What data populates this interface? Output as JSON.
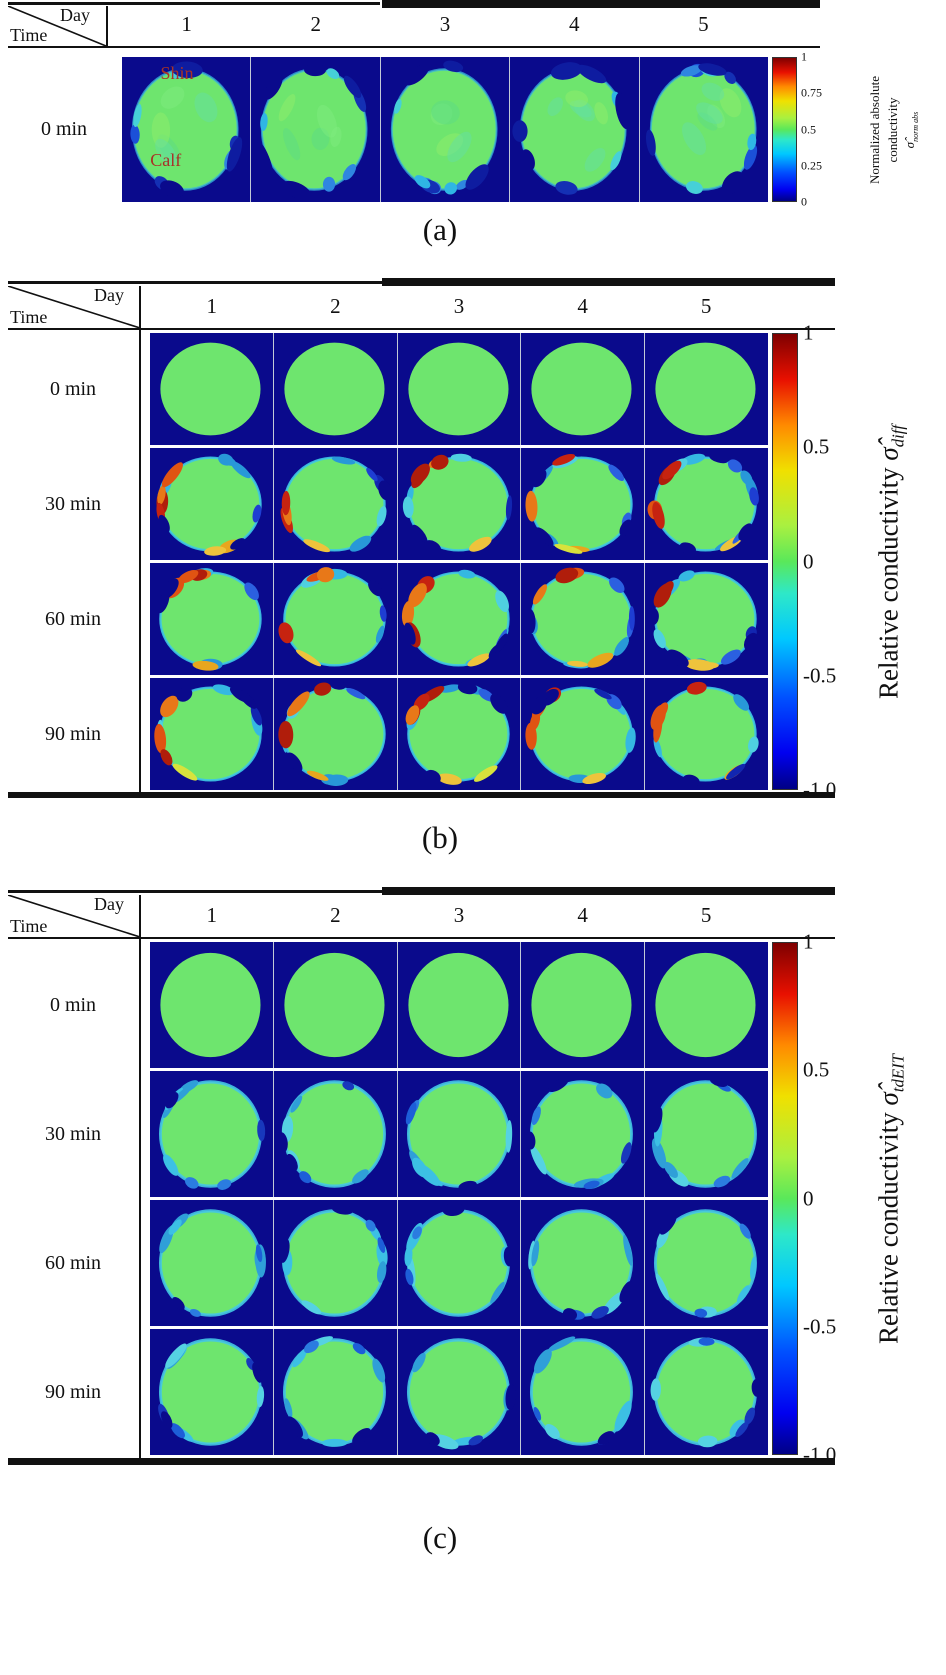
{
  "figure": {
    "type": "EIT leg cross-section conductivity image grids over 5 days",
    "colors": {
      "field_background": "#0a0a8c",
      "tissue_green": "#6ee56e",
      "annotation_red": "#a93226",
      "rule_black": "#111111",
      "colormap": "jet"
    },
    "panels": [
      {
        "id": "a",
        "caption": "(a)",
        "corner": {
          "top_label": "Day",
          "bottom_label": "Time"
        },
        "days": [
          "1",
          "2",
          "3",
          "4",
          "5"
        ],
        "rows": [
          {
            "time": "0 min",
            "style": "abs"
          }
        ],
        "annotations": [
          {
            "text": "Shin",
            "tile": 1,
            "x": "30%",
            "y": "4%"
          },
          {
            "text": "Calf",
            "tile": 1,
            "x": "22%",
            "y": "64%"
          }
        ],
        "colorbar": {
          "ticks": [
            "1",
            "0.75",
            "0.5",
            "0.25",
            "0"
          ],
          "label_lines": [
            "Normalized absolute",
            "conductivity"
          ],
          "math_sigma": "σ̂",
          "math_sub": "norm abs"
        }
      },
      {
        "id": "b",
        "caption": "(b)",
        "corner": {
          "top_label": "Day",
          "bottom_label": "Time"
        },
        "days": [
          "1",
          "2",
          "3",
          "4",
          "5"
        ],
        "rows": [
          {
            "time": "0 min",
            "style": "uniform"
          },
          {
            "time": "30 min",
            "style": "diff"
          },
          {
            "time": "60 min",
            "style": "diff"
          },
          {
            "time": "90 min",
            "style": "diff"
          }
        ],
        "colorbar": {
          "ticks": [
            "1",
            "0.5",
            "0",
            "-0.5",
            "-1.0"
          ],
          "label_prefix": "Relative conductivity ",
          "math_sigma": "σ̂",
          "math_sub": "diff"
        }
      },
      {
        "id": "c",
        "caption": "(c)",
        "corner": {
          "top_label": "Day",
          "bottom_label": "Time"
        },
        "days": [
          "1",
          "2",
          "3",
          "4",
          "5"
        ],
        "rows": [
          {
            "time": "0 min",
            "style": "uniform"
          },
          {
            "time": "30 min",
            "style": "td"
          },
          {
            "time": "60 min",
            "style": "td"
          },
          {
            "time": "90 min",
            "style": "td"
          }
        ],
        "colorbar": {
          "ticks": [
            "1",
            "0.5",
            "0",
            "-0.5",
            "-1.0"
          ],
          "label_prefix": "Relative conductivity ",
          "math_sigma": "σ̂",
          "math_sub": "tdEIT"
        }
      }
    ]
  }
}
